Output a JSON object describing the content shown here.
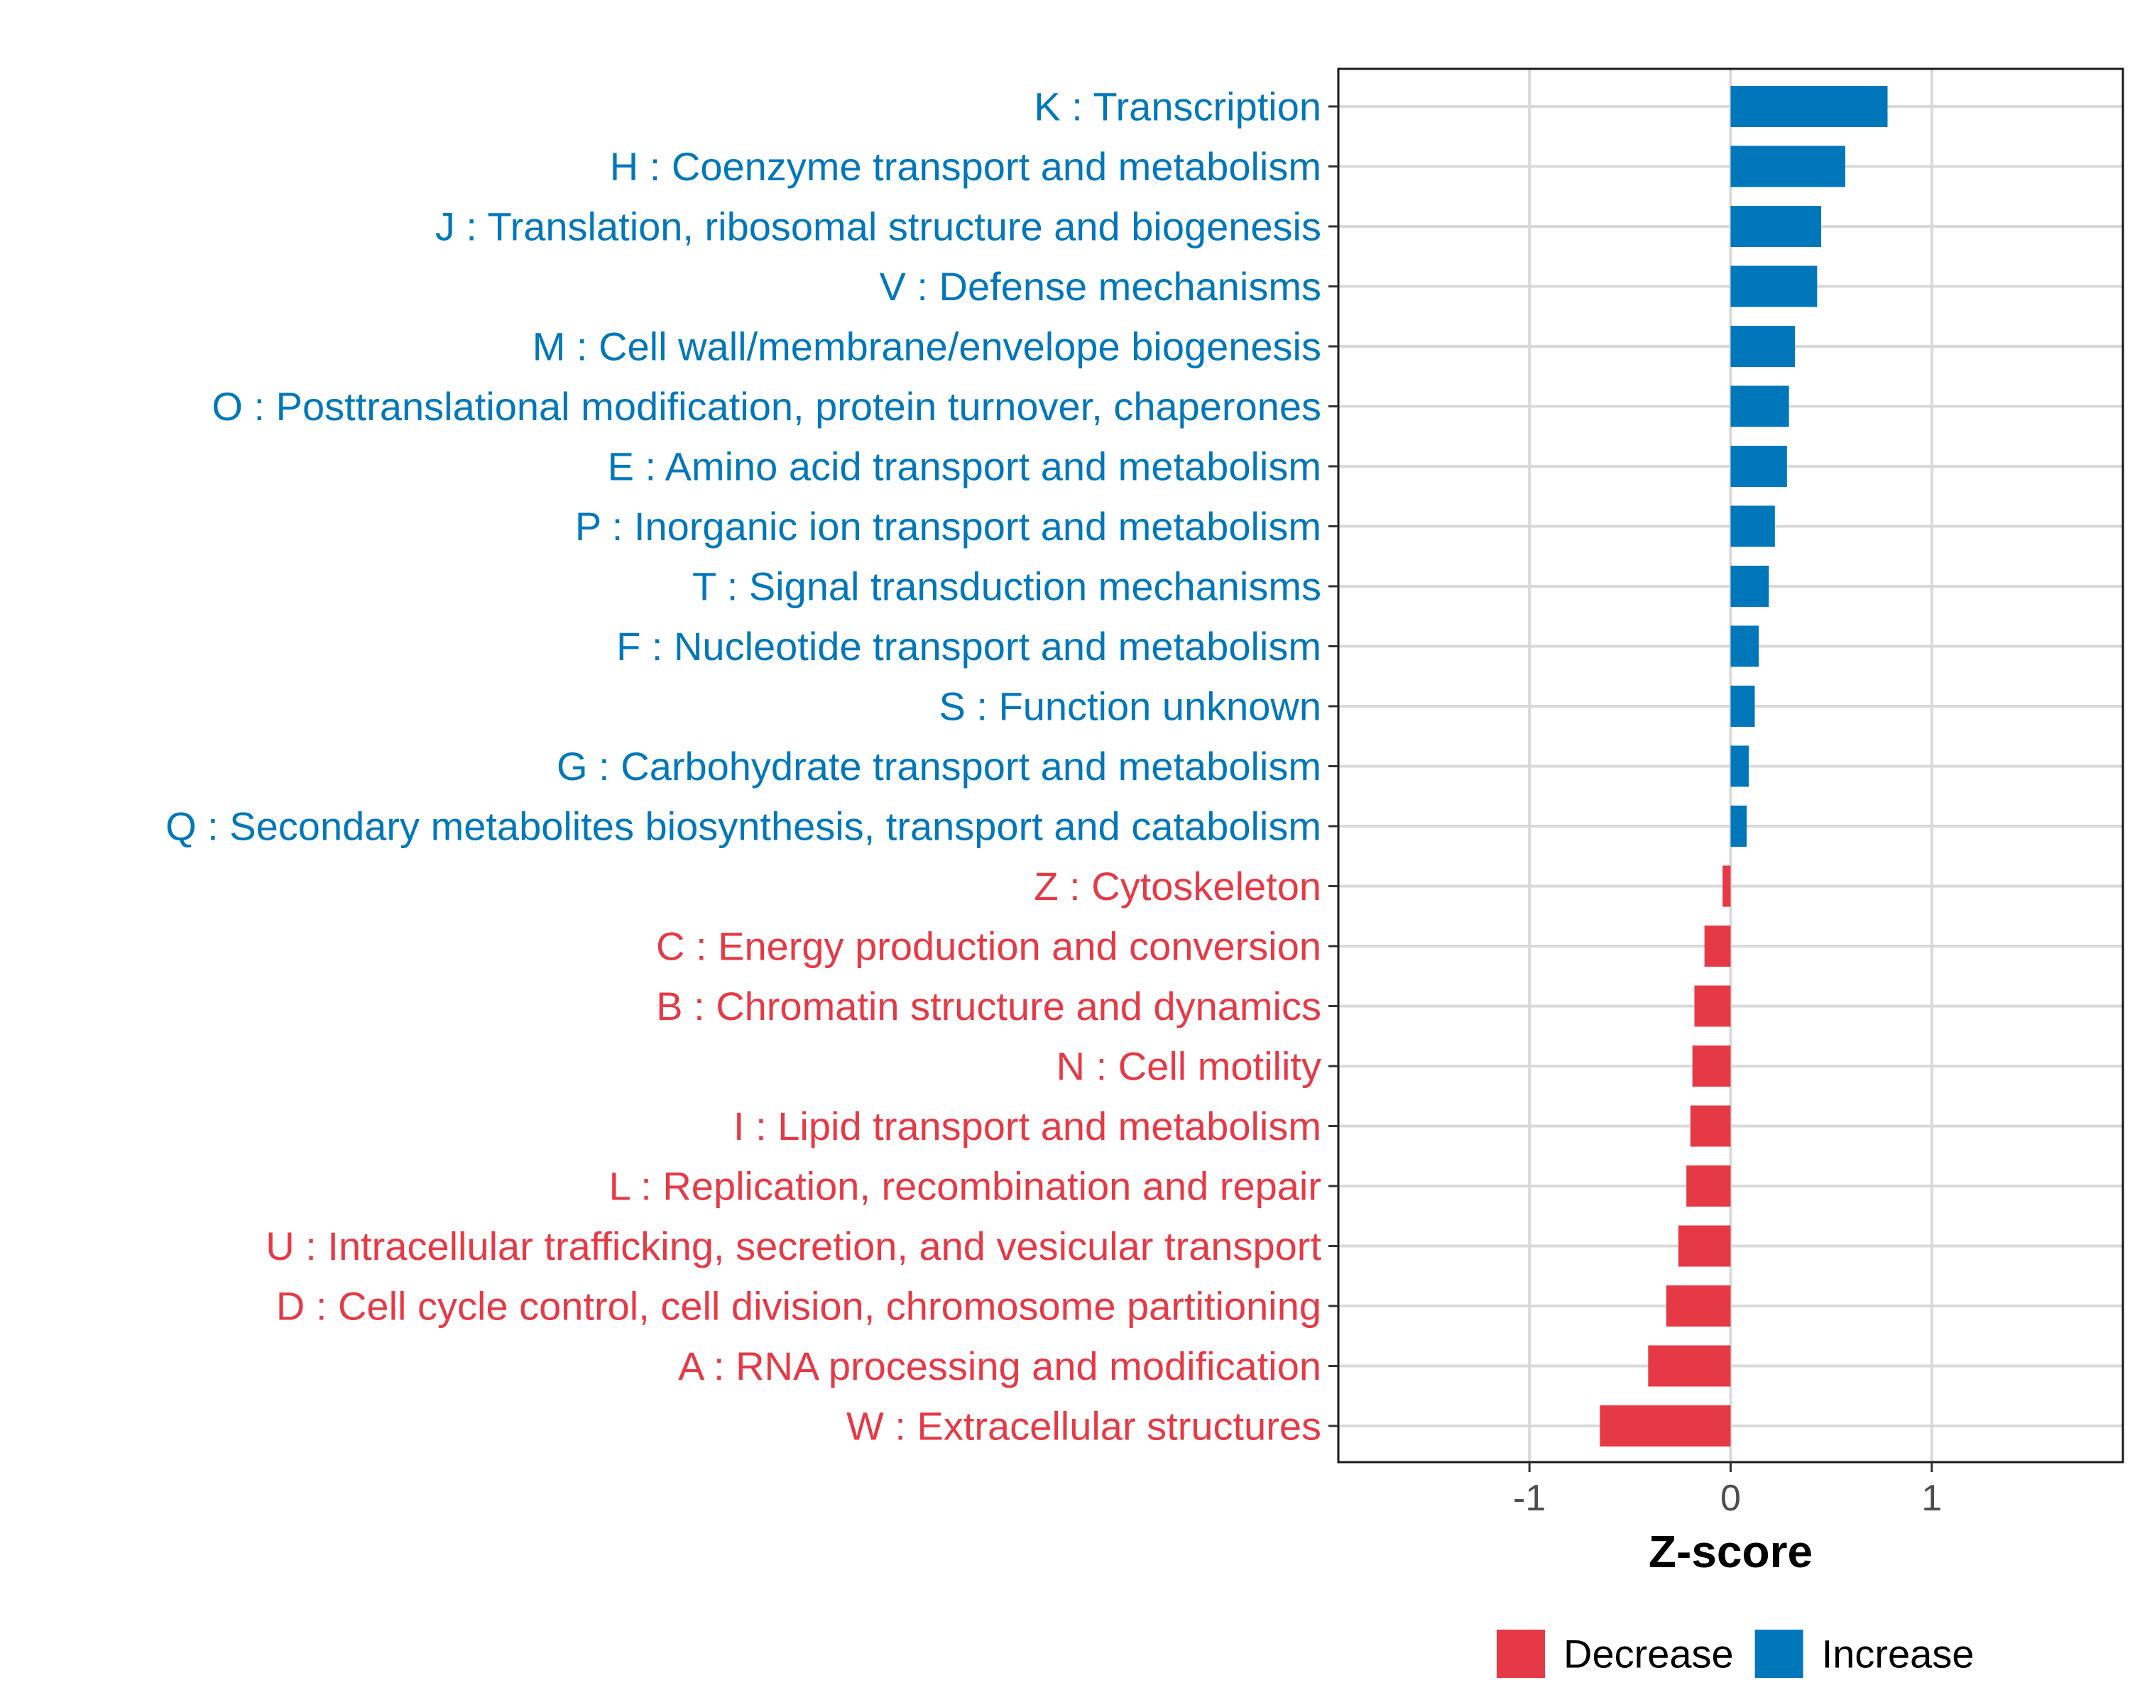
{
  "chart_data": {
    "type": "bar",
    "orientation": "horizontal",
    "xlabel": "Z-score",
    "ylabel": "",
    "xlim": [
      -1.95,
      1.95
    ],
    "xticks": [
      -1,
      0,
      1
    ],
    "xtick_labels": [
      "-1",
      "0",
      "1"
    ],
    "grid": true,
    "colors": {
      "Increase": "#0077BB",
      "Decrease": "#E63946"
    },
    "categories": [
      "K : Transcription",
      "H : Coenzyme transport and metabolism",
      "J : Translation, ribosomal structure and biogenesis",
      "V : Defense mechanisms",
      "M : Cell wall/membrane/envelope biogenesis",
      "O : Posttranslational modification, protein turnover, chaperones",
      "E : Amino acid transport and metabolism",
      "P : Inorganic ion transport and metabolism",
      "T : Signal transduction mechanisms",
      "F : Nucleotide transport and metabolism",
      "S : Function unknown",
      "G : Carbohydrate transport and metabolism",
      "Q : Secondary metabolites biosynthesis, transport and catabolism",
      "Z : Cytoskeleton",
      "C : Energy production and conversion",
      "B : Chromatin structure and dynamics",
      "N : Cell motility",
      "I : Lipid transport and metabolism",
      "L : Replication, recombination and repair",
      "U : Intracellular trafficking, secretion, and vesicular transport",
      "D : Cell cycle control, cell division, chromosome partitioning",
      "A : RNA processing and modification",
      "W : Extracellular structures"
    ],
    "values": [
      0.78,
      0.57,
      0.45,
      0.43,
      0.32,
      0.29,
      0.28,
      0.22,
      0.19,
      0.14,
      0.12,
      0.09,
      0.08,
      -0.04,
      -0.13,
      -0.18,
      -0.19,
      -0.2,
      -0.22,
      -0.26,
      -0.32,
      -0.41,
      -0.65
    ],
    "groups": [
      "Increase",
      "Increase",
      "Increase",
      "Increase",
      "Increase",
      "Increase",
      "Increase",
      "Increase",
      "Increase",
      "Increase",
      "Increase",
      "Increase",
      "Increase",
      "Decrease",
      "Decrease",
      "Decrease",
      "Decrease",
      "Decrease",
      "Decrease",
      "Decrease",
      "Decrease",
      "Decrease",
      "Decrease"
    ],
    "legend": {
      "position": "bottom",
      "entries": [
        {
          "label": "Decrease",
          "color": "#E63946"
        },
        {
          "label": "Increase",
          "color": "#0077BB"
        }
      ]
    }
  }
}
